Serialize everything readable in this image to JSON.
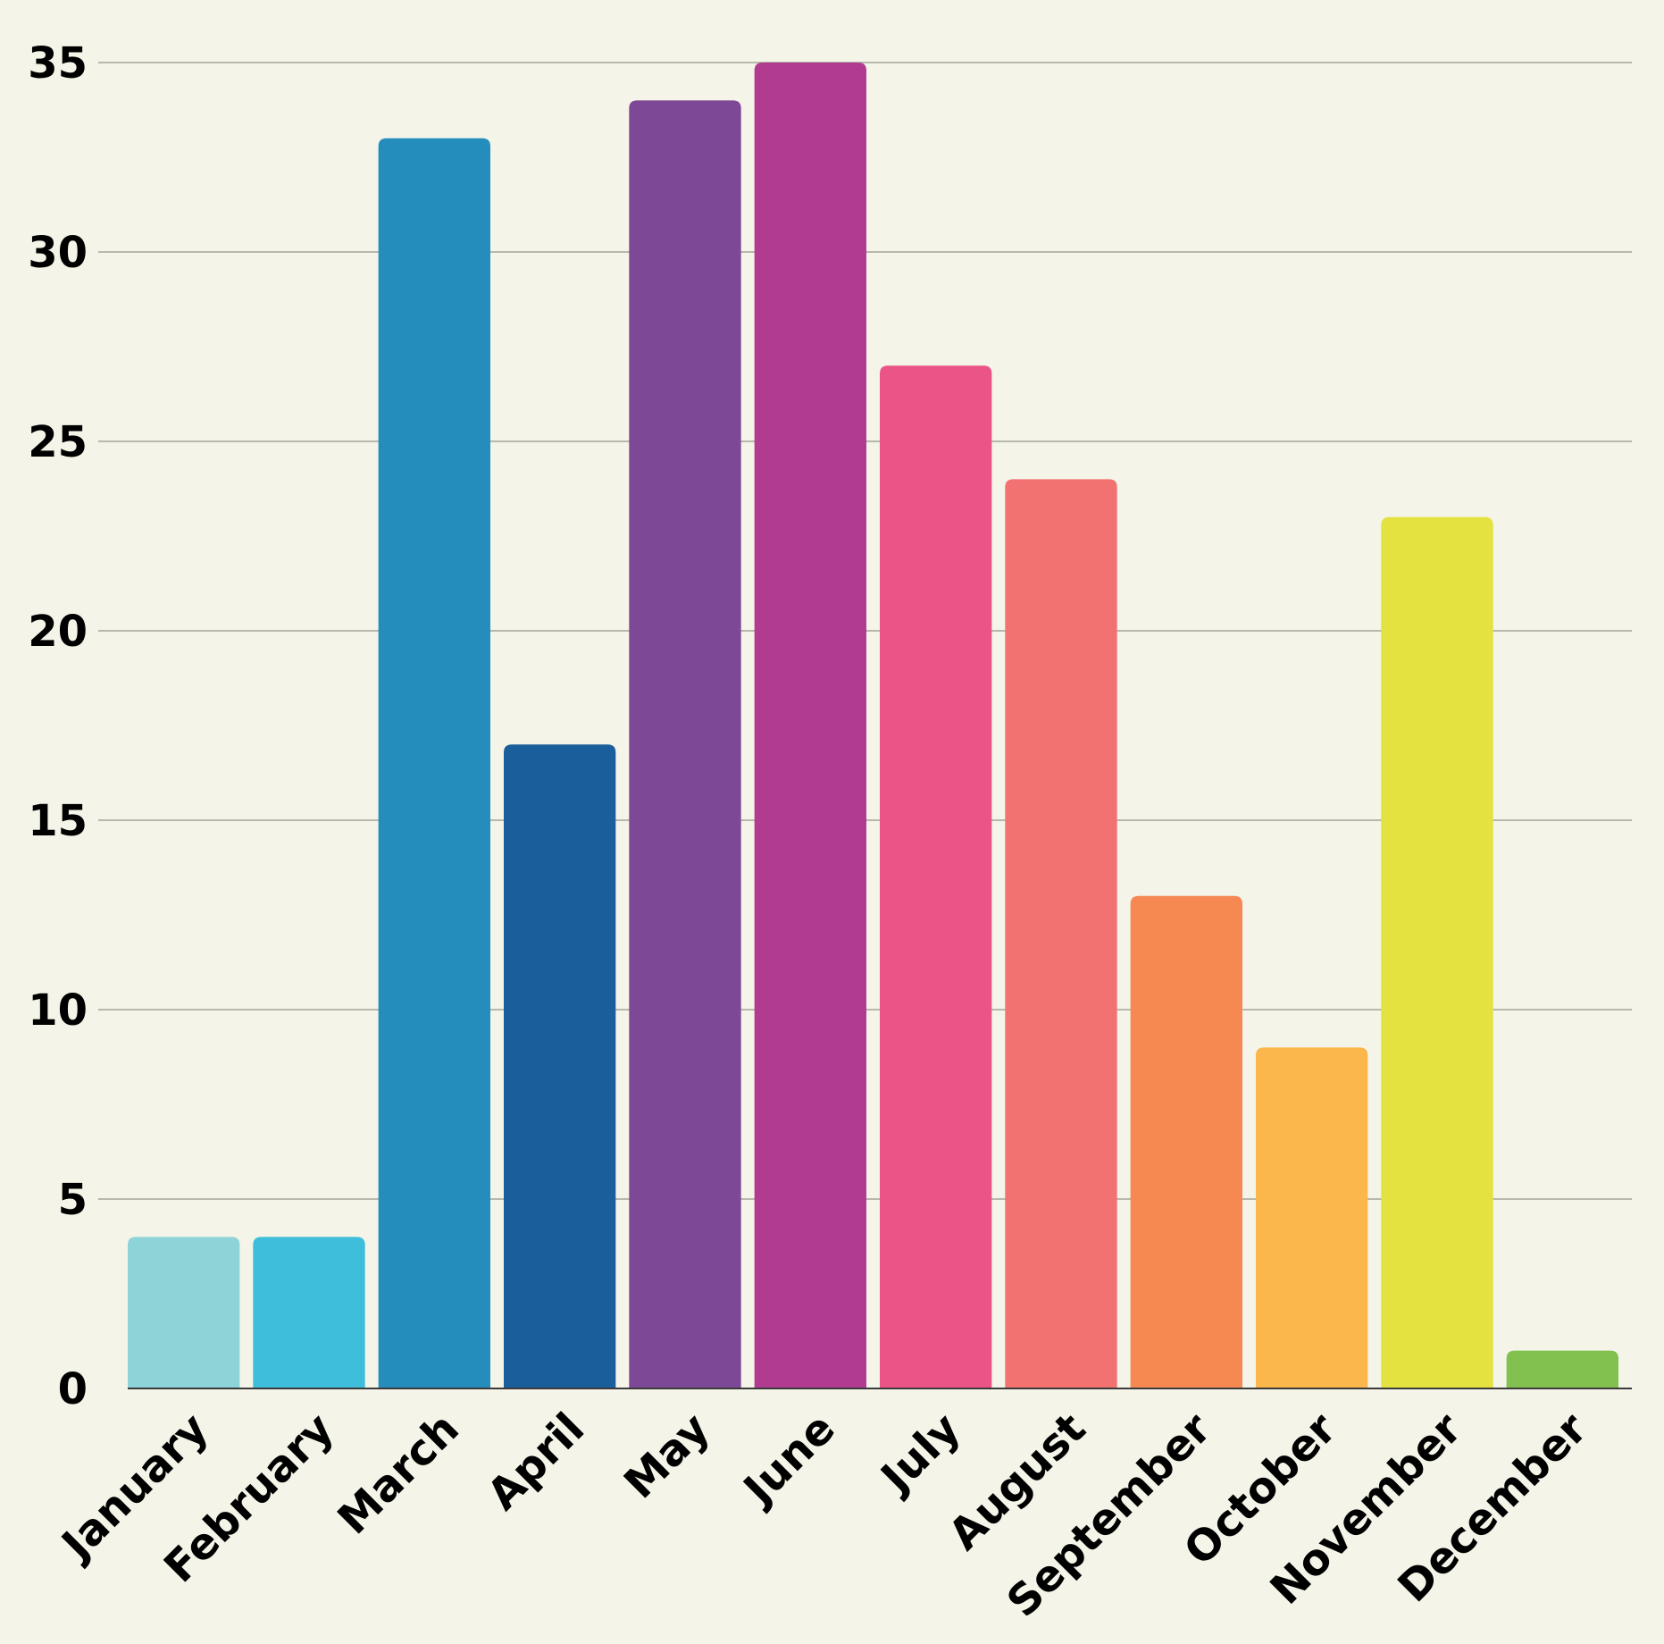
{
  "chart_data": {
    "type": "bar",
    "categories": [
      "January",
      "February",
      "March",
      "April",
      "May",
      "June",
      "July",
      "August",
      "September",
      "October",
      "November",
      "December"
    ],
    "values": [
      4,
      4,
      33,
      17,
      34,
      35,
      27,
      24,
      13,
      9,
      23,
      1
    ],
    "colors": [
      "#8dd3d8",
      "#3fbedb",
      "#248dbc",
      "#1a5f9b",
      "#7d4896",
      "#b13b8f",
      "#ea5486",
      "#f27171",
      "#f68852",
      "#fbb64c",
      "#e3e241",
      "#82c14f"
    ],
    "title": "",
    "xlabel": "",
    "ylabel": "",
    "ylim": [
      0,
      35
    ],
    "yticks": [
      "0",
      "5",
      "10",
      "15",
      "20",
      "25",
      "30",
      "35"
    ],
    "grid": true
  }
}
